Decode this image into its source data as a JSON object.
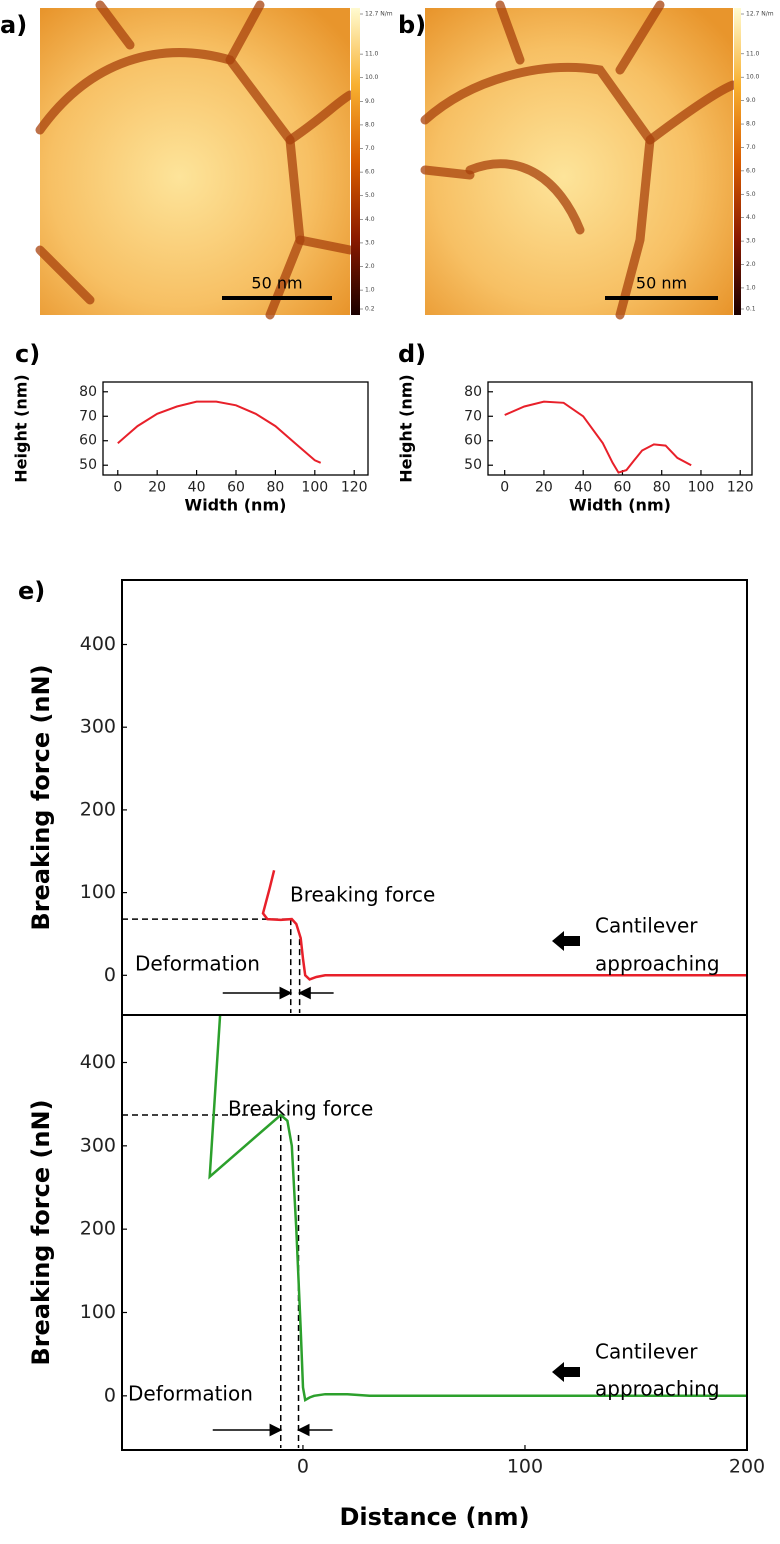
{
  "chart_data": [
    {
      "type": "image",
      "panel": "a)",
      "scale_bar": "50 nm",
      "colorbar": {
        "lim": [
          0.2,
          12.7
        ],
        "ticks": [
          {
            "value": 12.7,
            "label": "12.7 N/m"
          },
          {
            "value": 11,
            "label": "11.0"
          },
          {
            "value": 10,
            "label": "10.0"
          },
          {
            "value": 9,
            "label": "9.0"
          },
          {
            "value": 8,
            "label": "8.0"
          },
          {
            "value": 7,
            "label": "7.0"
          },
          {
            "value": 6,
            "label": "6.0"
          },
          {
            "value": 5,
            "label": "5.0"
          },
          {
            "value": 4,
            "label": "4.0"
          },
          {
            "value": 3,
            "label": "3.0"
          },
          {
            "value": 2,
            "label": "2.0"
          },
          {
            "value": 1,
            "label": "1.0"
          },
          0.2
        ]
      }
    },
    {
      "type": "image",
      "panel": "b)",
      "scale_bar": "50 nm",
      "colorbar": {
        "lim": [
          0.1,
          12.7
        ],
        "ticks": [
          {
            "value": 12.7,
            "label": "12.7 N/m"
          },
          {
            "value": 11,
            "label": "11.0"
          },
          {
            "value": 10,
            "label": "10.0"
          },
          {
            "value": 9,
            "label": "9.0"
          },
          {
            "value": 8,
            "label": "8.0"
          },
          {
            "value": 7,
            "label": "7.0"
          },
          {
            "value": 6,
            "label": "6.0"
          },
          {
            "value": 5,
            "label": "5.0"
          },
          {
            "value": 4,
            "label": "4.0"
          },
          {
            "value": 3,
            "label": "3.0"
          },
          {
            "value": 2,
            "label": "2.0"
          },
          {
            "value": 1,
            "label": "1.0"
          },
          0.1
        ]
      }
    },
    {
      "type": "line",
      "panel": "c)",
      "xlabel": "Width (nm)",
      "ylabel": "Height (nm)",
      "xlim": [
        -7.5,
        127
      ],
      "ylim": [
        46,
        84
      ],
      "xticks": [
        0,
        20,
        40,
        60,
        80,
        100,
        120
      ],
      "yticks": [
        50,
        60,
        70,
        80
      ],
      "series": [
        {
          "color": "#e8202a",
          "x": [
            0,
            10,
            20,
            30,
            40,
            50,
            60,
            70,
            80,
            90,
            100,
            103
          ],
          "values": [
            59,
            66,
            71,
            74,
            76,
            76,
            74.5,
            71,
            66,
            59,
            52,
            51
          ]
        }
      ]
    },
    {
      "type": "line",
      "panel": "d)",
      "xlabel": "Width (nm)",
      "ylabel": "Height (nm)",
      "xlim": [
        -8.5,
        126
      ],
      "ylim": [
        46,
        84
      ],
      "xticks": [
        0,
        20,
        40,
        60,
        80,
        100,
        120
      ],
      "yticks": [
        50,
        60,
        70,
        80
      ],
      "series": [
        {
          "color": "#e8202a",
          "x": [
            0,
            10,
            20,
            30,
            40,
            50,
            55,
            58,
            62,
            66,
            70,
            76,
            82,
            88,
            95
          ],
          "values": [
            70.5,
            74,
            76,
            75.5,
            70,
            59,
            51,
            47,
            48,
            52,
            56,
            58.5,
            58,
            53,
            50
          ]
        }
      ]
    },
    {
      "type": "line",
      "panel": "e)",
      "ylabel": "Breaking force (nN)",
      "xlim": [
        -81.5,
        200
      ],
      "ylim": [
        -48,
        478
      ],
      "yticks": [
        0,
        100,
        200,
        300,
        400
      ],
      "series": [
        {
          "color": "#e8202a",
          "x": [
            -13,
            -15,
            -18,
            -16,
            -10,
            -5,
            -3,
            -1,
            0,
            1,
            3,
            6,
            10,
            200
          ],
          "values": [
            127,
            105,
            75,
            68,
            67,
            68,
            62,
            45,
            20,
            0,
            -5,
            -2,
            0,
            0
          ]
        }
      ],
      "guides": {
        "y": 68,
        "x": [
          -5.5,
          -1.5
        ]
      },
      "annotations": {
        "breaking": "Breaking force",
        "deformation": "Deformation",
        "cantilever": [
          "Cantilever",
          "approaching"
        ]
      }
    },
    {
      "type": "line",
      "xlabel": "Distance (nm)",
      "ylabel": "Breaking force (nN)",
      "xlim": [
        -81.5,
        200
      ],
      "ylim": [
        -65,
        457
      ],
      "xticks": [
        0,
        100,
        200
      ],
      "yticks": [
        0,
        100,
        200,
        300,
        400
      ],
      "series": [
        {
          "color": "#2ca02c",
          "x": [
            -37,
            -42,
            -10,
            -7,
            -5,
            -3,
            -1,
            0,
            1,
            3,
            5,
            10,
            20,
            30,
            200
          ],
          "values": [
            470,
            263,
            337,
            330,
            300,
            200,
            80,
            10,
            -5,
            -2,
            0,
            2,
            2,
            0,
            0
          ]
        }
      ],
      "guides": {
        "y": 337,
        "x": [
          -10,
          -2
        ]
      },
      "annotations": {
        "breaking": "Breaking force",
        "deformation": "Deformation",
        "cantilever": [
          "Cantilever",
          "approaching"
        ]
      }
    }
  ]
}
